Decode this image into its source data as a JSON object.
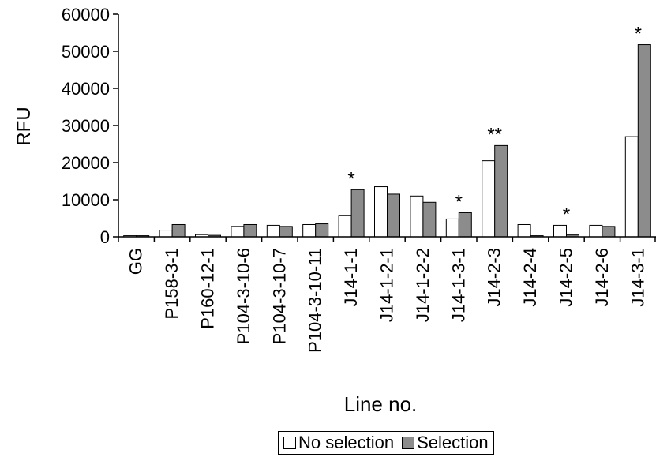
{
  "chart_data": {
    "type": "bar",
    "title": "",
    "xlabel": "Line no.",
    "ylabel": "RFU",
    "ylim": [
      0,
      60000
    ],
    "yticks": [
      0,
      10000,
      20000,
      30000,
      40000,
      50000,
      60000
    ],
    "grid": false,
    "legend_position": "bottom",
    "categories": [
      "GG",
      "P158-3-1",
      "P160-12-1",
      "P104-3-10-6",
      "P104-3-10-7",
      "P104-3-10-11",
      "J14-1-1",
      "J14-1-2-1",
      "J14-1-2-2",
      "J14-1-3-1",
      "J14-2-3",
      "J14-2-4",
      "J14-2-5",
      "J14-2-6",
      "J14-3-1"
    ],
    "series": [
      {
        "name": "No selection",
        "color": "#ffffff",
        "values": [
          300,
          1800,
          600,
          2800,
          3100,
          3300,
          5800,
          13500,
          11000,
          4800,
          20500,
          3300,
          3100,
          3100,
          27000
        ]
      },
      {
        "name": "Selection",
        "color": "#8c8c8c",
        "values": [
          300,
          3300,
          400,
          3300,
          2800,
          3500,
          12700,
          11500,
          9300,
          6500,
          24600,
          300,
          500,
          2800,
          51800
        ]
      }
    ],
    "annotations": [
      {
        "category": "J14-1-1",
        "text": "*"
      },
      {
        "category": "J14-1-3-1",
        "text": "*"
      },
      {
        "category": "J14-2-3",
        "text": "**"
      },
      {
        "category": "J14-2-5",
        "text": "*"
      },
      {
        "category": "J14-3-1",
        "text": "*"
      }
    ]
  }
}
